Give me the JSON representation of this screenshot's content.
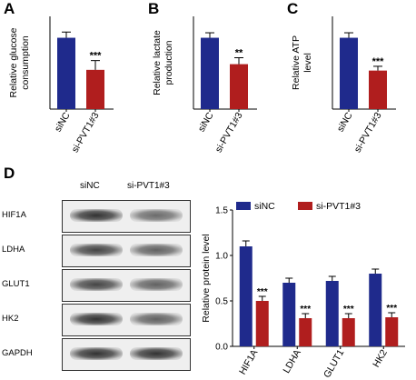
{
  "panel_letters": {
    "a": "A",
    "b": "B",
    "c": "C",
    "d": "D"
  },
  "colors": {
    "siNC": "#1f2a8c",
    "si-PVT1#3": "#b01e1e"
  },
  "chart_data": [
    {
      "type": "bar",
      "categories": [
        "siNC",
        "si-PVT1#3"
      ],
      "values": [
        1.0,
        0.55
      ],
      "errors": [
        0.08,
        0.13
      ],
      "significance": [
        "",
        "***"
      ],
      "ylabel": "Relative glucose consumption",
      "ylim": [
        0,
        1.3
      ]
    },
    {
      "type": "bar",
      "categories": [
        "siNC",
        "si-PVT1#3"
      ],
      "values": [
        1.0,
        0.63
      ],
      "errors": [
        0.07,
        0.09
      ],
      "significance": [
        "",
        "**"
      ],
      "ylabel": "Relative lactate production",
      "ylim": [
        0,
        1.3
      ]
    },
    {
      "type": "bar",
      "categories": [
        "siNC",
        "si-PVT1#3"
      ],
      "values": [
        1.0,
        0.54
      ],
      "errors": [
        0.07,
        0.06
      ],
      "significance": [
        "",
        "***"
      ],
      "ylabel": "Relative ATP level",
      "ylim": [
        0,
        1.3
      ]
    },
    {
      "type": "bar",
      "categories": [
        "HIF1A",
        "LDHA",
        "GLUT1",
        "HK2"
      ],
      "series": [
        {
          "name": "siNC",
          "values": [
            1.1,
            0.7,
            0.72,
            0.8
          ],
          "errors": [
            0.06,
            0.05,
            0.05,
            0.05
          ]
        },
        {
          "name": "si-PVT1#3",
          "values": [
            0.5,
            0.31,
            0.31,
            0.32
          ],
          "errors": [
            0.05,
            0.05,
            0.05,
            0.05
          ],
          "significance": [
            "***",
            "***",
            "***",
            "***"
          ]
        }
      ],
      "ylabel": "Relative protein level",
      "ylim": [
        0,
        1.5
      ],
      "yticks": [
        0.0,
        0.5,
        1.0,
        1.5
      ],
      "legend": "top"
    }
  ],
  "blot": {
    "lanes": [
      "siNC",
      "si-PVT1#3"
    ],
    "rows": [
      {
        "label": "HIF1A",
        "intensity": [
          1.0,
          0.7
        ]
      },
      {
        "label": "LDHA",
        "intensity": [
          0.9,
          0.75
        ]
      },
      {
        "label": "GLUT1",
        "intensity": [
          0.9,
          0.75
        ]
      },
      {
        "label": "HK2",
        "intensity": [
          1.0,
          0.75
        ]
      },
      {
        "label": "GAPDH",
        "intensity": [
          1.0,
          1.0
        ]
      }
    ]
  }
}
